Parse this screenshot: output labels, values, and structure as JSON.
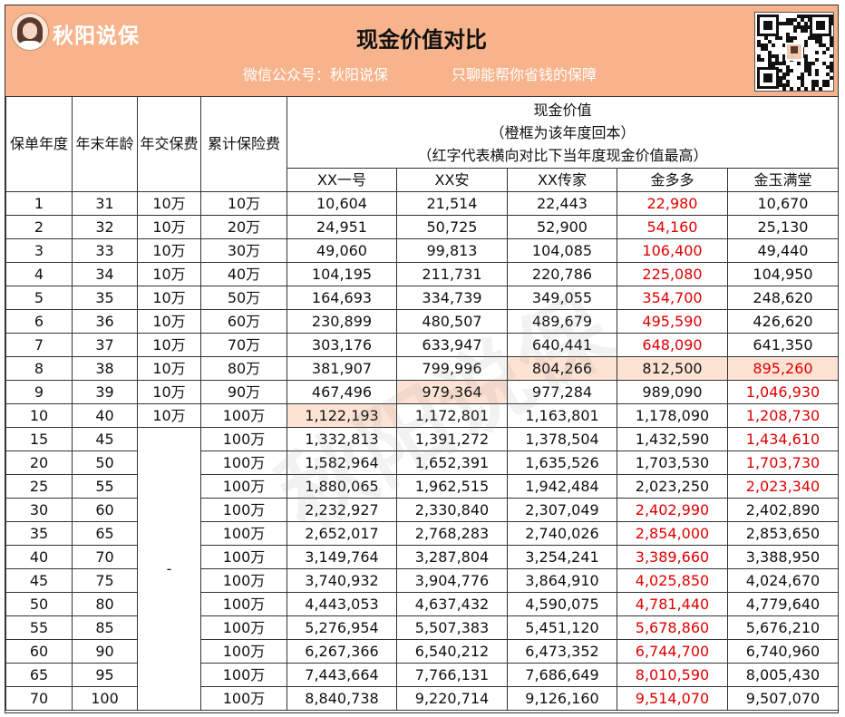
{
  "header": {
    "brand": "秋阳说保",
    "title": "现金价值对比",
    "wechat": "微信公众号：秋阳说保",
    "slogan": "只聊能帮你省钱的保障",
    "watermark": "秋阳说保"
  },
  "table": {
    "col_headers": [
      "保单年度",
      "年末年龄",
      "年交保费",
      "累计保险费"
    ],
    "cv_title": [
      "现金价值",
      "（橙框为该年度回本）",
      "（红字代表横向对比下当年度现金价值最高）"
    ],
    "products": [
      "XX一号",
      "XX安",
      "XX传家",
      "金多多",
      "金玉满堂"
    ],
    "merged_premium": "-",
    "rows": [
      {
        "year": "1",
        "age": "31",
        "premium": "10万",
        "total": "10万",
        "v": [
          "10,604",
          "21,514",
          "22,443",
          "22,980",
          "10,670"
        ],
        "red": [
          3
        ],
        "hl": []
      },
      {
        "year": "2",
        "age": "32",
        "premium": "10万",
        "total": "20万",
        "v": [
          "24,951",
          "50,725",
          "52,900",
          "54,160",
          "25,130"
        ],
        "red": [
          3
        ],
        "hl": []
      },
      {
        "year": "3",
        "age": "33",
        "premium": "10万",
        "total": "30万",
        "v": [
          "49,060",
          "99,813",
          "104,085",
          "106,400",
          "49,440"
        ],
        "red": [
          3
        ],
        "hl": []
      },
      {
        "year": "4",
        "age": "34",
        "premium": "10万",
        "total": "40万",
        "v": [
          "104,195",
          "211,731",
          "220,786",
          "225,080",
          "104,950"
        ],
        "red": [
          3
        ],
        "hl": []
      },
      {
        "year": "5",
        "age": "35",
        "premium": "10万",
        "total": "50万",
        "v": [
          "164,693",
          "334,739",
          "349,055",
          "354,700",
          "248,620"
        ],
        "red": [
          3
        ],
        "hl": []
      },
      {
        "year": "6",
        "age": "36",
        "premium": "10万",
        "total": "60万",
        "v": [
          "230,899",
          "480,507",
          "489,679",
          "495,590",
          "426,620"
        ],
        "red": [
          3
        ],
        "hl": []
      },
      {
        "year": "7",
        "age": "37",
        "premium": "10万",
        "total": "70万",
        "v": [
          "303,176",
          "633,947",
          "640,441",
          "648,090",
          "641,350"
        ],
        "red": [
          3
        ],
        "hl": []
      },
      {
        "year": "8",
        "age": "38",
        "premium": "10万",
        "total": "80万",
        "v": [
          "381,907",
          "799,996",
          "804,266",
          "812,500",
          "895,260"
        ],
        "red": [
          4
        ],
        "hl": [
          2,
          3,
          4
        ]
      },
      {
        "year": "9",
        "age": "39",
        "premium": "10万",
        "total": "90万",
        "v": [
          "467,496",
          "979,364",
          "977,284",
          "989,090",
          "1,046,930"
        ],
        "red": [
          4
        ],
        "hl": [
          1
        ]
      },
      {
        "year": "10",
        "age": "40",
        "premium": "10万",
        "total": "100万",
        "v": [
          "1,122,193",
          "1,172,801",
          "1,163,801",
          "1,178,090",
          "1,208,730"
        ],
        "red": [
          4
        ],
        "hl": [
          0
        ]
      },
      {
        "year": "15",
        "age": "45",
        "total": "100万",
        "v": [
          "1,332,813",
          "1,391,272",
          "1,378,504",
          "1,432,590",
          "1,434,610"
        ],
        "red": [
          4
        ],
        "hl": []
      },
      {
        "year": "20",
        "age": "50",
        "total": "100万",
        "v": [
          "1,582,964",
          "1,652,391",
          "1,635,526",
          "1,703,530",
          "1,703,730"
        ],
        "red": [
          4
        ],
        "hl": []
      },
      {
        "year": "25",
        "age": "55",
        "total": "100万",
        "v": [
          "1,880,065",
          "1,962,515",
          "1,942,484",
          "2,023,250",
          "2,023,340"
        ],
        "red": [
          4
        ],
        "hl": []
      },
      {
        "year": "30",
        "age": "60",
        "total": "100万",
        "v": [
          "2,232,927",
          "2,330,840",
          "2,307,049",
          "2,402,990",
          "2,402,890"
        ],
        "red": [
          3
        ],
        "hl": []
      },
      {
        "year": "35",
        "age": "65",
        "total": "100万",
        "v": [
          "2,652,017",
          "2,768,283",
          "2,740,026",
          "2,854,000",
          "2,853,650"
        ],
        "red": [
          3
        ],
        "hl": []
      },
      {
        "year": "40",
        "age": "70",
        "total": "100万",
        "v": [
          "3,149,764",
          "3,287,804",
          "3,254,241",
          "3,389,660",
          "3,388,950"
        ],
        "red": [
          3
        ],
        "hl": []
      },
      {
        "year": "45",
        "age": "75",
        "total": "100万",
        "v": [
          "3,740,932",
          "3,904,776",
          "3,864,910",
          "4,025,850",
          "4,024,670"
        ],
        "red": [
          3
        ],
        "hl": []
      },
      {
        "year": "50",
        "age": "80",
        "total": "100万",
        "v": [
          "4,443,053",
          "4,637,432",
          "4,590,075",
          "4,781,440",
          "4,779,640"
        ],
        "red": [
          3
        ],
        "hl": []
      },
      {
        "year": "55",
        "age": "85",
        "total": "100万",
        "v": [
          "5,276,954",
          "5,507,383",
          "5,451,120",
          "5,678,860",
          "5,676,210"
        ],
        "red": [
          3
        ],
        "hl": []
      },
      {
        "year": "60",
        "age": "90",
        "total": "100万",
        "v": [
          "6,267,366",
          "6,540,212",
          "6,473,352",
          "6,744,700",
          "6,740,960"
        ],
        "red": [
          3
        ],
        "hl": []
      },
      {
        "year": "65",
        "age": "95",
        "total": "100万",
        "v": [
          "7,443,664",
          "7,766,131",
          "7,686,649",
          "8,010,590",
          "8,005,430"
        ],
        "red": [
          3
        ],
        "hl": []
      },
      {
        "year": "70",
        "age": "100",
        "total": "100万",
        "v": [
          "8,840,738",
          "9,220,714",
          "9,126,160",
          "9,514,070",
          "9,507,070"
        ],
        "red": [
          3
        ],
        "hl": []
      }
    ]
  }
}
